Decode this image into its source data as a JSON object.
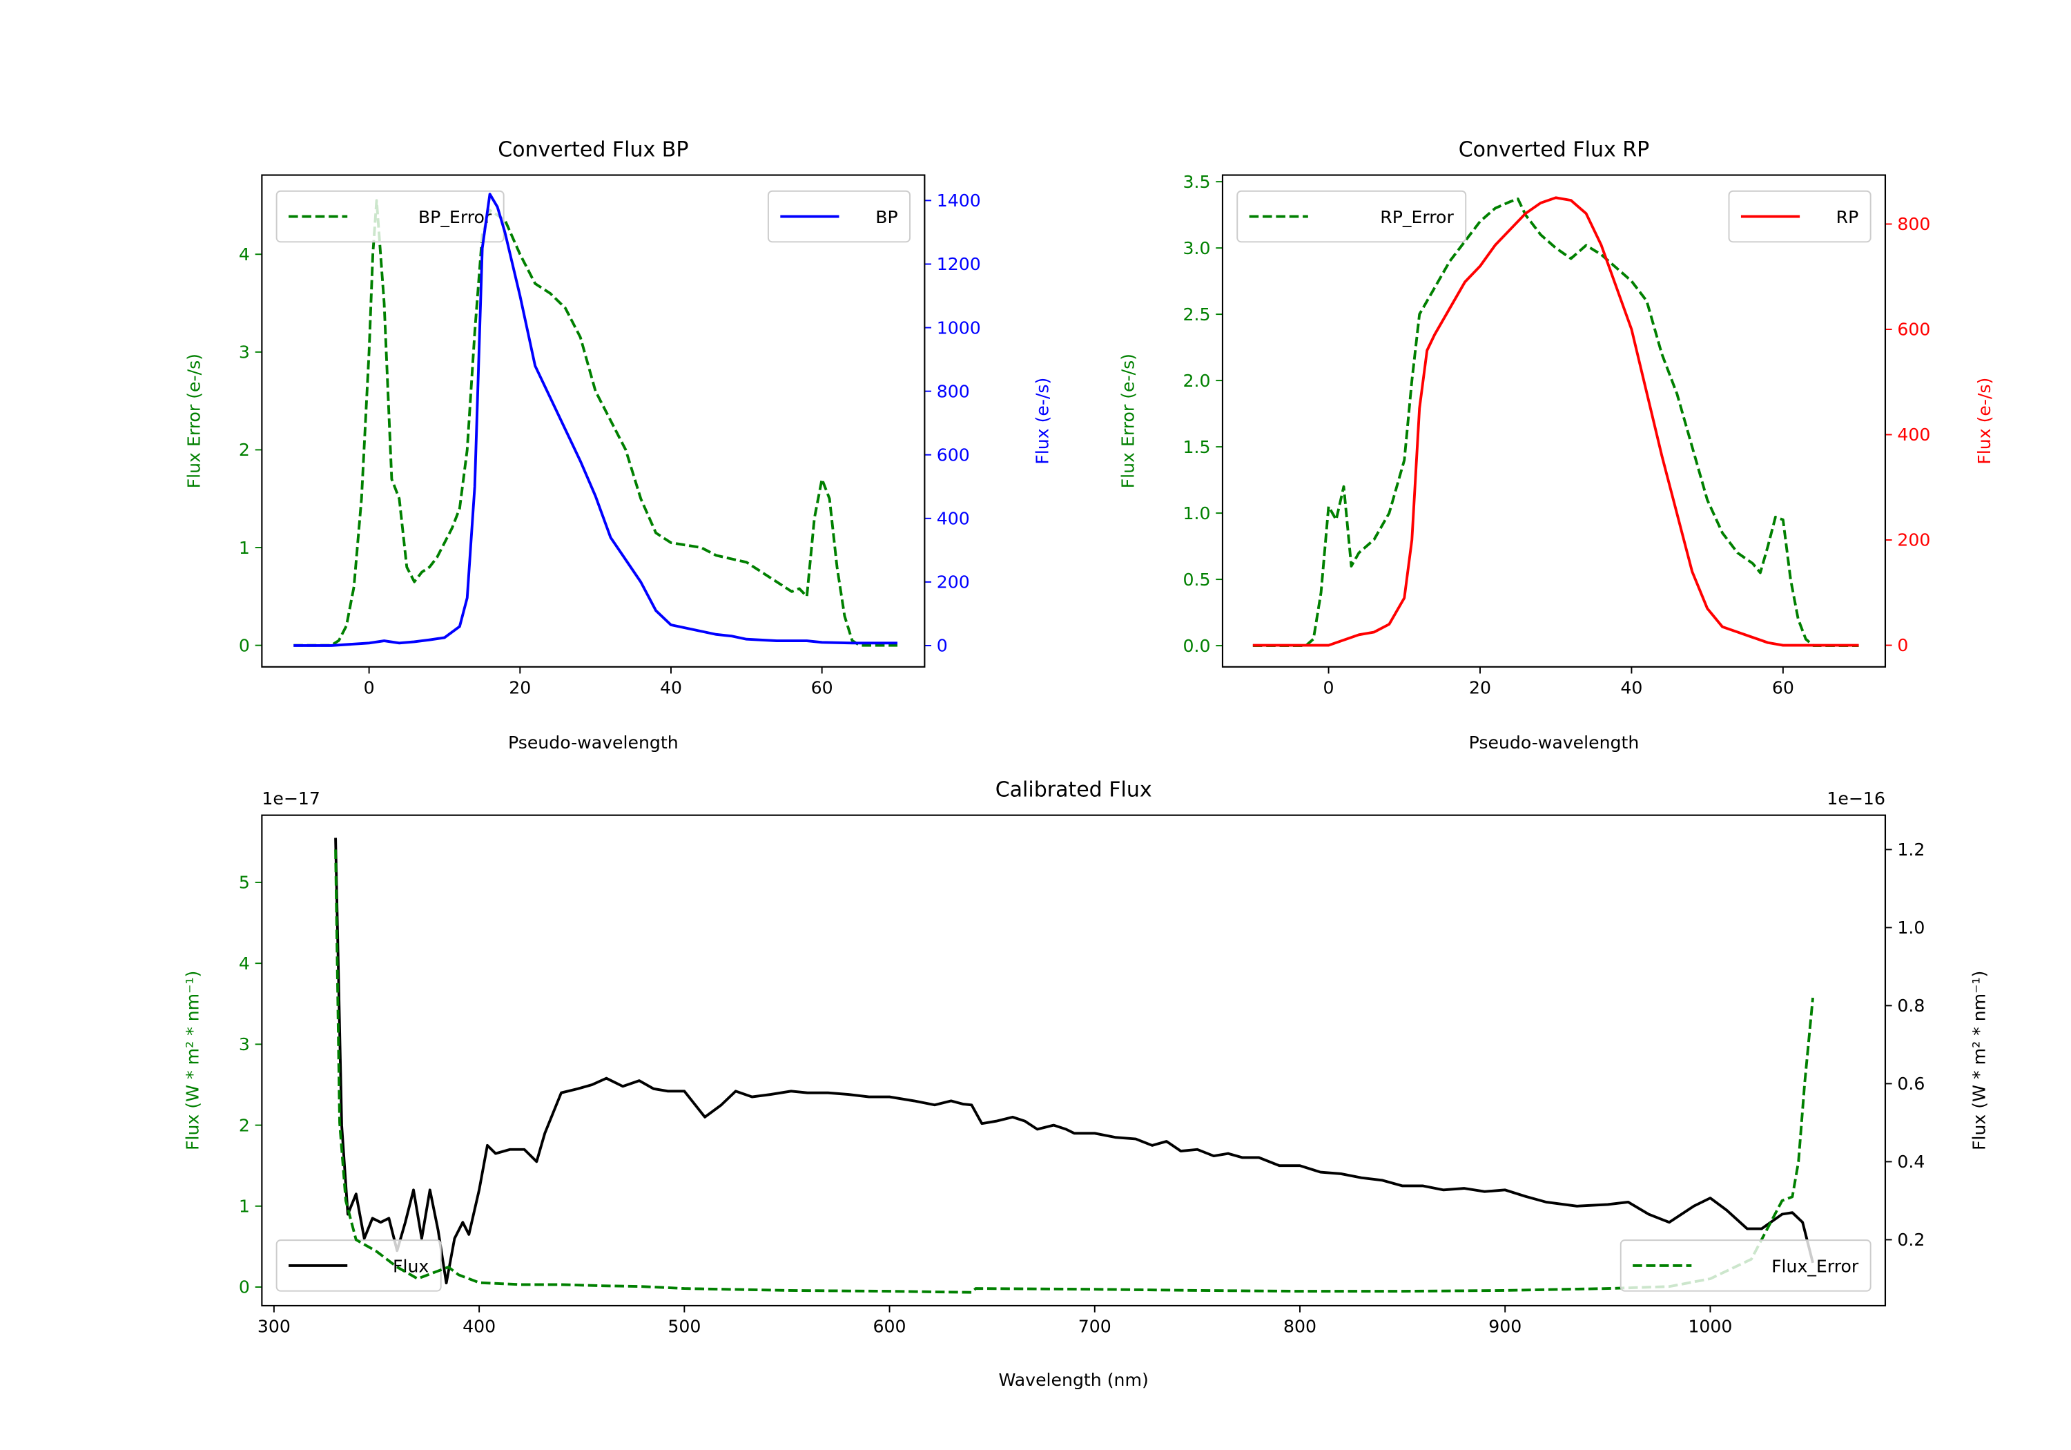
{
  "colors": {
    "green": "#008000",
    "blue": "#0000ff",
    "red": "#ff0000",
    "black": "#000000"
  },
  "chart_data": [
    {
      "type": "line",
      "title": "Converted Flux BP",
      "xlabel": "Pseudo-wavelength",
      "xlim": [
        -14.2,
        73.6
      ],
      "xticks": [
        0,
        20,
        40,
        60
      ],
      "xtick_labels": [
        "0",
        "20",
        "40",
        "60"
      ],
      "y_left": {
        "label": "Flux Error (e-/s)",
        "color": "#008000",
        "lim": [
          -0.22,
          4.81
        ],
        "ticks": [
          0,
          1,
          2,
          3,
          4
        ],
        "tick_labels": [
          "0",
          "1",
          "2",
          "3",
          "4"
        ]
      },
      "y_right": {
        "label": "Flux (e-/s)",
        "color": "#0000ff",
        "lim": [
          -67,
          1480
        ],
        "ticks": [
          0,
          200,
          400,
          600,
          800,
          1000,
          1200,
          1400
        ],
        "tick_labels": [
          "0",
          "200",
          "400",
          "600",
          "800",
          "1000",
          "1200",
          "1400"
        ]
      },
      "series": [
        {
          "name": "BP_Error",
          "axis": "left",
          "color": "#008000",
          "style": "dashed",
          "legend": "upper left",
          "x": [
            -10,
            -5,
            -4,
            -3,
            -2,
            -1,
            0,
            0.5,
            1,
            2,
            3,
            4,
            5,
            6,
            7,
            8,
            9,
            10,
            11,
            12,
            13,
            14,
            15,
            16,
            18,
            20,
            22,
            24,
            26,
            28,
            30,
            32,
            34,
            36,
            38,
            40,
            44,
            46,
            50,
            54,
            56,
            57,
            58,
            59,
            60,
            61,
            62,
            63,
            64,
            65,
            70
          ],
          "y": [
            0,
            0,
            0.05,
            0.2,
            0.6,
            1.5,
            3.0,
            4.0,
            4.55,
            3.5,
            1.7,
            1.5,
            0.8,
            0.65,
            0.75,
            0.8,
            0.9,
            1.05,
            1.2,
            1.4,
            2.0,
            3.2,
            4.2,
            4.45,
            4.35,
            4.0,
            3.7,
            3.6,
            3.45,
            3.15,
            2.6,
            2.3,
            2.0,
            1.5,
            1.15,
            1.05,
            1.0,
            0.92,
            0.85,
            0.65,
            0.55,
            0.58,
            0.5,
            1.3,
            1.7,
            1.5,
            0.8,
            0.3,
            0.05,
            0,
            0
          ]
        },
        {
          "name": "BP",
          "axis": "right",
          "color": "#0000ff",
          "style": "solid",
          "legend": "upper right",
          "x": [
            -10,
            -5,
            0,
            2,
            4,
            6,
            8,
            10,
            12,
            13,
            14,
            15,
            16,
            17,
            18,
            20,
            22,
            24,
            26,
            28,
            30,
            32,
            34,
            36,
            38,
            40,
            42,
            44,
            46,
            48,
            50,
            54,
            58,
            60,
            64,
            70
          ],
          "y": [
            0,
            0,
            8,
            15,
            8,
            12,
            18,
            25,
            60,
            150,
            500,
            1250,
            1420,
            1380,
            1300,
            1100,
            880,
            780,
            680,
            580,
            470,
            340,
            270,
            200,
            110,
            65,
            55,
            45,
            35,
            30,
            20,
            15,
            15,
            10,
            8,
            8
          ]
        }
      ]
    },
    {
      "type": "line",
      "title": "Converted Flux RP",
      "xlabel": "Pseudo-wavelength",
      "xlim": [
        -14.0,
        73.5
      ],
      "xticks": [
        0,
        20,
        40,
        60
      ],
      "xtick_labels": [
        "0",
        "20",
        "40",
        "60"
      ],
      "y_left": {
        "label": "Flux Error (e-/s)",
        "color": "#008000",
        "lim": [
          -0.16,
          3.55
        ],
        "ticks": [
          0,
          0.5,
          1,
          1.5,
          2,
          2.5,
          3,
          3.5
        ],
        "tick_labels": [
          "0.0",
          "0.5",
          "1.0",
          "1.5",
          "2.0",
          "2.5",
          "3.0",
          "3.5"
        ]
      },
      "y_right": {
        "label": "Flux (e-/s)",
        "color": "#ff0000",
        "lim": [
          -41,
          893
        ],
        "ticks": [
          0,
          200,
          400,
          600,
          800
        ],
        "tick_labels": [
          "0",
          "200",
          "400",
          "600",
          "800"
        ]
      },
      "series": [
        {
          "name": "RP_Error",
          "axis": "left",
          "color": "#008000",
          "style": "dashed",
          "legend": "upper left",
          "x": [
            -10,
            -3,
            -2,
            -1,
            0,
            1,
            2,
            3,
            4,
            6,
            8,
            10,
            11,
            12,
            14,
            16,
            18,
            20,
            22,
            24,
            25,
            26,
            28,
            30,
            32,
            34,
            36,
            38,
            40,
            42,
            44,
            46,
            48,
            50,
            52,
            54,
            56,
            57,
            58,
            59,
            60,
            61,
            62,
            63,
            64,
            70
          ],
          "y": [
            0,
            0,
            0.05,
            0.4,
            1.05,
            0.95,
            1.2,
            0.6,
            0.7,
            0.8,
            1.0,
            1.4,
            2.0,
            2.5,
            2.7,
            2.9,
            3.05,
            3.2,
            3.3,
            3.35,
            3.37,
            3.25,
            3.1,
            3.0,
            2.92,
            3.02,
            2.95,
            2.85,
            2.75,
            2.6,
            2.2,
            1.9,
            1.5,
            1.1,
            0.85,
            0.7,
            0.62,
            0.55,
            0.75,
            0.97,
            0.95,
            0.5,
            0.2,
            0.05,
            0,
            0
          ]
        },
        {
          "name": "RP",
          "axis": "right",
          "color": "#ff0000",
          "style": "solid",
          "legend": "upper right",
          "x": [
            -10,
            0,
            2,
            4,
            6,
            8,
            10,
            11,
            12,
            13,
            14,
            16,
            18,
            20,
            22,
            24,
            26,
            28,
            30,
            32,
            34,
            36,
            38,
            40,
            42,
            44,
            46,
            48,
            50,
            52,
            54,
            56,
            58,
            60,
            70
          ],
          "y": [
            0,
            0,
            10,
            20,
            25,
            40,
            90,
            200,
            450,
            560,
            590,
            640,
            690,
            720,
            760,
            790,
            820,
            840,
            850,
            845,
            820,
            760,
            680,
            600,
            480,
            360,
            250,
            140,
            70,
            35,
            25,
            15,
            5,
            0,
            0
          ]
        }
      ]
    },
    {
      "type": "line",
      "title": "Calibrated Flux",
      "xlabel": "Wavelength (nm)",
      "xlim": [
        294.1,
        1085.3
      ],
      "xticks": [
        300,
        400,
        500,
        600,
        700,
        800,
        900,
        1000
      ],
      "xtick_labels": [
        "300",
        "400",
        "500",
        "600",
        "700",
        "800",
        "900",
        "1000"
      ],
      "y_left": {
        "label": "Flux (W * m² * nm⁻¹)",
        "color": "#008000",
        "offset_text": "1e−17",
        "lim": [
          -0.23,
          5.83
        ],
        "ticks": [
          0,
          1,
          2,
          3,
          4,
          5
        ],
        "tick_labels": [
          "0",
          "1",
          "2",
          "3",
          "4",
          "5"
        ]
      },
      "y_right": {
        "label": "Flux (W * m² * nm⁻¹)",
        "color": "#000000",
        "offset_text": "1e−16",
        "lim": [
          0.031,
          1.288
        ],
        "ticks": [
          0.2,
          0.4,
          0.6,
          0.8,
          1.0,
          1.2
        ],
        "tick_labels": [
          "0.2",
          "0.4",
          "0.6",
          "0.8",
          "1.0",
          "1.2"
        ]
      },
      "series": [
        {
          "name": "Flux",
          "axis": "left",
          "color": "#000000",
          "style": "solid",
          "legend": "lower left",
          "x": [
            330,
            333,
            336,
            340,
            344,
            348,
            352,
            356,
            360,
            364,
            368,
            372,
            376,
            380,
            384,
            388,
            392,
            395,
            400,
            404,
            408,
            415,
            422,
            428,
            432,
            440,
            448,
            455,
            462,
            470,
            478,
            485,
            492,
            500,
            510,
            518,
            525,
            533,
            542,
            552,
            560,
            570,
            580,
            590,
            600,
            612,
            622,
            630,
            636,
            640,
            645,
            652,
            660,
            666,
            672,
            680,
            686,
            690,
            700,
            710,
            720,
            728,
            735,
            742,
            750,
            758,
            765,
            772,
            780,
            790,
            800,
            810,
            820,
            830,
            840,
            850,
            860,
            870,
            880,
            890,
            900,
            910,
            920,
            935,
            950,
            960,
            970,
            980,
            992,
            1000,
            1008,
            1018,
            1025,
            1035,
            1040,
            1045,
            1050
          ],
          "y": [
            5.55,
            2.0,
            0.9,
            1.15,
            0.6,
            0.85,
            0.8,
            0.85,
            0.45,
            0.8,
            1.2,
            0.6,
            1.2,
            0.7,
            0.05,
            0.6,
            0.8,
            0.65,
            1.2,
            1.75,
            1.65,
            1.7,
            1.7,
            1.55,
            1.9,
            2.4,
            2.45,
            2.5,
            2.58,
            2.48,
            2.55,
            2.45,
            2.42,
            2.42,
            2.1,
            2.25,
            2.42,
            2.35,
            2.38,
            2.42,
            2.4,
            2.4,
            2.38,
            2.35,
            2.35,
            2.3,
            2.25,
            2.3,
            2.26,
            2.25,
            2.02,
            2.05,
            2.1,
            2.05,
            1.95,
            2.0,
            1.95,
            1.9,
            1.9,
            1.85,
            1.83,
            1.75,
            1.8,
            1.68,
            1.7,
            1.62,
            1.65,
            1.6,
            1.6,
            1.5,
            1.5,
            1.42,
            1.4,
            1.35,
            1.32,
            1.25,
            1.25,
            1.2,
            1.22,
            1.18,
            1.2,
            1.12,
            1.05,
            1.0,
            1.02,
            1.05,
            0.9,
            0.8,
            1.0,
            1.1,
            0.95,
            0.72,
            0.72,
            0.9,
            0.92,
            0.8,
            0.3
          ]
        },
        {
          "name": "Flux_Error",
          "axis": "right",
          "color": "#008000",
          "style": "dashed",
          "legend": "lower right",
          "x": [
            330,
            332,
            335,
            340,
            350,
            360,
            370,
            380,
            385,
            390,
            395,
            400,
            420,
            440,
            460,
            480,
            500,
            550,
            600,
            640,
            642,
            700,
            750,
            800,
            850,
            900,
            950,
            980,
            1000,
            1020,
            1030,
            1035,
            1040,
            1043,
            1046,
            1050
          ],
          "y": [
            1.2,
            0.5,
            0.3,
            0.2,
            0.17,
            0.13,
            0.1,
            0.12,
            0.13,
            0.11,
            0.1,
            0.09,
            0.085,
            0.085,
            0.082,
            0.08,
            0.075,
            0.07,
            0.068,
            0.065,
            0.075,
            0.073,
            0.07,
            0.068,
            0.068,
            0.07,
            0.075,
            0.08,
            0.1,
            0.15,
            0.25,
            0.3,
            0.31,
            0.4,
            0.6,
            0.82
          ]
        }
      ]
    }
  ]
}
